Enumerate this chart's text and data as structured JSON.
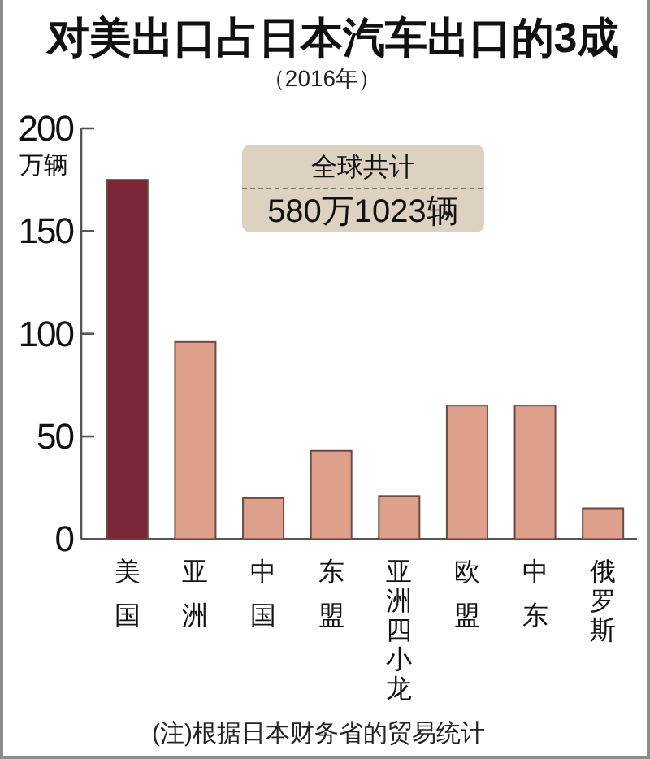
{
  "chart_data": {
    "type": "bar",
    "title": "对美出口占日本汽车出口的3成",
    "subtitle": "（2016年）",
    "ylabel": "万辆",
    "categories": [
      "美国",
      "亚洲",
      "中国",
      "东盟",
      "亚洲四小龙",
      "欧盟",
      "中东",
      "俄罗斯"
    ],
    "values": [
      175,
      96,
      20,
      43,
      21,
      65,
      65,
      15
    ],
    "colors": [
      "#7b2639",
      "#dea08a",
      "#dea08a",
      "#dea08a",
      "#dea08a",
      "#dea08a",
      "#dea08a",
      "#dea08a"
    ],
    "ylim": [
      0,
      200
    ],
    "yticks": [
      0,
      50,
      100,
      150,
      200
    ],
    "annotations": [
      "全球共计",
      "580万1023辆",
      "(注)根据日本财务省的贸易统计"
    ]
  }
}
